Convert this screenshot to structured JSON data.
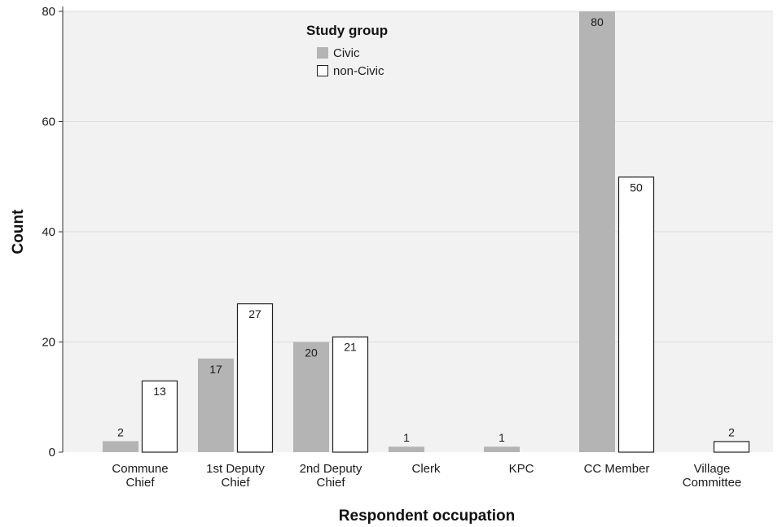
{
  "chart_data": {
    "type": "bar",
    "title": "",
    "xlabel": "Respondent occupation",
    "ylabel": "Count",
    "ylim": [
      0,
      80
    ],
    "yticks": [
      0,
      20,
      40,
      60,
      80
    ],
    "grid": true,
    "legend": {
      "title": "Study group",
      "position": "top-center"
    },
    "categories": [
      [
        "Commune",
        "Chief"
      ],
      [
        "1st Deputy",
        "Chief"
      ],
      [
        "2nd Deputy",
        "Chief"
      ],
      [
        "Clerk"
      ],
      [
        "KPC"
      ],
      [
        "CC Member"
      ],
      [
        "Village",
        "Committee"
      ]
    ],
    "series": [
      {
        "name": "Civic",
        "color": "#b4b4b4",
        "values": [
          2,
          17,
          20,
          1,
          1,
          80,
          null
        ]
      },
      {
        "name": "non-Civic",
        "color": "#ffffff",
        "values": [
          13,
          27,
          21,
          null,
          null,
          50,
          2
        ]
      }
    ]
  }
}
